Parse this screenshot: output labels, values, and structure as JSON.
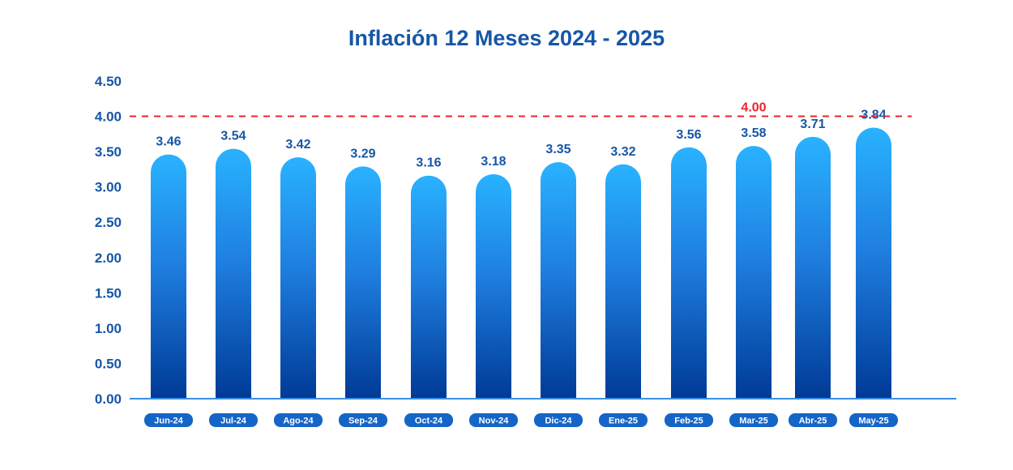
{
  "chart_data": {
    "type": "bar",
    "title": "Inflación 12 Meses 2024 - 2025",
    "categories": [
      "Jun-24",
      "Jul-24",
      "Ago-24",
      "Sep-24",
      "Oct-24",
      "Nov-24",
      "Dic-24",
      "Ene-25",
      "Feb-25",
      "Mar-25",
      "Abr-25",
      "May-25"
    ],
    "values": [
      3.46,
      3.54,
      3.42,
      3.29,
      3.16,
      3.18,
      3.35,
      3.32,
      3.56,
      3.58,
      3.71,
      3.84
    ],
    "value_labels": [
      "3.46",
      "3.54",
      "3.42",
      "3.29",
      "3.16",
      "3.18",
      "3.35",
      "3.32",
      "3.56",
      "3.58",
      "3.71",
      "3.84"
    ],
    "ylim": [
      0,
      4.5
    ],
    "yticks": [
      "0.00",
      "0.50",
      "1.00",
      "1.50",
      "2.00",
      "2.50",
      "3.00",
      "3.50",
      "4.00",
      "4.50"
    ],
    "reference_line": {
      "value": 4.0,
      "label": "4.00",
      "style": "dashed",
      "color": "#e8262b"
    },
    "colors": {
      "title": "#1756a6",
      "axis_text": "#1756a6",
      "bar_top": "#29b2ff",
      "bar_bottom": "#003a96",
      "tick_pill": "#1565c8",
      "tick_text": "#ffffff",
      "axis_line": "#3a8fe6",
      "label_text": "#1756a6"
    },
    "grid": false,
    "legend": "none"
  }
}
